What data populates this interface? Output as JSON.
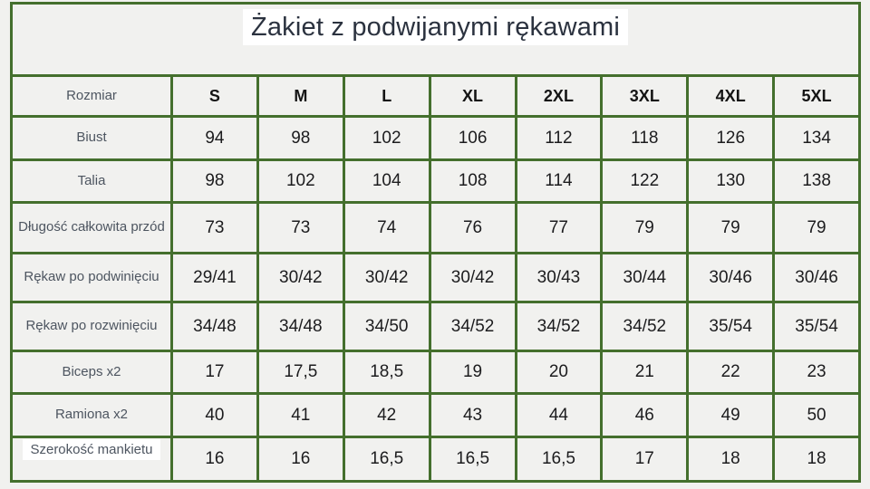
{
  "title": "Żakiet z podwijanymi rękawami",
  "colors": {
    "border_green": "#446F2D",
    "page_background": "#F1F1EF",
    "highlight_white": "#FFFFFF",
    "title_text": "#2B323F",
    "label_text": "#4D5560",
    "value_text": "#1C1C1E",
    "header_text": "#141414"
  },
  "table": {
    "corner_label": "Rozmiar",
    "size_headers": [
      "S",
      "M",
      "L",
      "XL",
      "2XL",
      "3XL",
      "4XL",
      "5XL"
    ],
    "rows": [
      {
        "label": "Biust",
        "highlighted_label": false,
        "values": [
          "94",
          "98",
          "102",
          "106",
          "112",
          "118",
          "126",
          "134"
        ]
      },
      {
        "label": "Talia",
        "highlighted_label": false,
        "values": [
          "98",
          "102",
          "104",
          "108",
          "114",
          "122",
          "130",
          "138"
        ]
      },
      {
        "label": "Długość całkowita przód",
        "highlighted_label": false,
        "values": [
          "73",
          "73",
          "74",
          "76",
          "77",
          "79",
          "79",
          "79"
        ]
      },
      {
        "label": "Rękaw po podwinięciu",
        "highlighted_label": false,
        "values": [
          "29/41",
          "30/42",
          "30/42",
          "30/42",
          "30/43",
          "30/44",
          "30/46",
          "30/46"
        ]
      },
      {
        "label": "Rękaw po rozwinięciu",
        "highlighted_label": false,
        "values": [
          "34/48",
          "34/48",
          "34/50",
          "34/52",
          "34/52",
          "34/52",
          "35/54",
          "35/54"
        ]
      },
      {
        "label": "Biceps x2",
        "highlighted_label": false,
        "values": [
          "17",
          "17,5",
          "18,5",
          "19",
          "20",
          "21",
          "22",
          "23"
        ]
      },
      {
        "label": "Ramiona x2",
        "highlighted_label": false,
        "values": [
          "40",
          "41",
          "42",
          "43",
          "44",
          "46",
          "49",
          "50"
        ]
      },
      {
        "label": "Szerokość mankietu",
        "highlighted_label": true,
        "values": [
          "16",
          "16",
          "16,5",
          "16,5",
          "16,5",
          "17",
          "18",
          "18"
        ]
      }
    ]
  },
  "chart_data": {
    "type": "table",
    "title": "Żakiet z podwijanymi rękawami",
    "columns": [
      "Rozmiar",
      "S",
      "M",
      "L",
      "XL",
      "2XL",
      "3XL",
      "4XL",
      "5XL"
    ],
    "rows": [
      [
        "Biust",
        "94",
        "98",
        "102",
        "106",
        "112",
        "118",
        "126",
        "134"
      ],
      [
        "Talia",
        "98",
        "102",
        "104",
        "108",
        "114",
        "122",
        "130",
        "138"
      ],
      [
        "Długość całkowita przód",
        "73",
        "73",
        "74",
        "76",
        "77",
        "79",
        "79",
        "79"
      ],
      [
        "Rękaw po podwinięciu",
        "29/41",
        "30/42",
        "30/42",
        "30/42",
        "30/43",
        "30/44",
        "30/46",
        "30/46"
      ],
      [
        "Rękaw po rozwinięciu",
        "34/48",
        "34/48",
        "34/50",
        "34/52",
        "34/52",
        "34/52",
        "35/54",
        "35/54"
      ],
      [
        "Biceps x2",
        "17",
        "17,5",
        "18,5",
        "19",
        "20",
        "21",
        "22",
        "23"
      ],
      [
        "Ramiona x2",
        "40",
        "41",
        "42",
        "43",
        "44",
        "46",
        "49",
        "50"
      ],
      [
        "Szerokość mankietu",
        "16",
        "16",
        "16,5",
        "16,5",
        "16,5",
        "17",
        "18",
        "18"
      ]
    ],
    "layout": {
      "grid": true,
      "border_color": "#446F2D",
      "title_position": "top-center"
    }
  }
}
